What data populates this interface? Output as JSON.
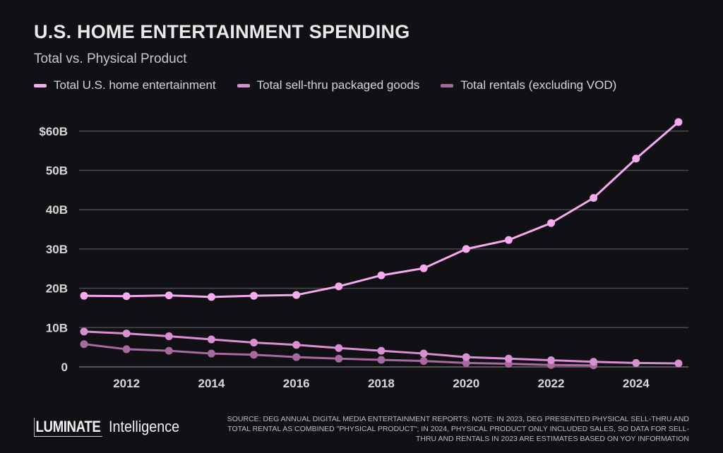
{
  "title": "U.S. HOME ENTERTAINMENT SPENDING",
  "subtitle": "Total vs. Physical Product",
  "logo": {
    "main": "LUMINATE",
    "sub": "Intelligence"
  },
  "source": "SOURCE: DEG ANNUAL DIGITAL MEDIA ENTERTAINMENT REPORTS; NOTE: IN 2023, DEG PRESENTED PHYSICAL SELL-THRU AND TOTAL RENTAL AS COMBINED \"PHYSICAL PRODUCT\"; IN 2024, PHYSICAL PRODUCT ONLY INCLUDED SALES, SO DATA FOR SELL-THRU AND RENTALS IN 2023 ARE ESTIMATES BASED ON YOY INFORMATION",
  "chart_data": {
    "type": "line",
    "title": "U.S. HOME ENTERTAINMENT SPENDING",
    "subtitle": "Total vs. Physical Product",
    "x": [
      2011,
      2012,
      2013,
      2014,
      2015,
      2016,
      2017,
      2018,
      2019,
      2020,
      2021,
      2022,
      2023,
      2024,
      2025
    ],
    "xticks": [
      "2012",
      "2014",
      "2016",
      "2018",
      "2020",
      "2022",
      "2024"
    ],
    "yticks": [
      "0",
      "10B",
      "20B",
      "30B",
      "40B",
      "50B",
      "$60B"
    ],
    "ylim": [
      0,
      60
    ],
    "yunit": "billions USD",
    "grid": true,
    "legend_placement": "top",
    "series": [
      {
        "name": "Total U.S. home entertainment",
        "color": "#f7aaf0",
        "values": [
          18.1,
          18.0,
          18.2,
          17.8,
          18.1,
          18.3,
          20.5,
          23.3,
          25.1,
          30.0,
          32.3,
          36.6,
          43.0,
          53.0,
          62.3
        ]
      },
      {
        "name": "Total sell-thru packaged goods",
        "color": "#d98fd1",
        "values": [
          9.0,
          8.5,
          7.8,
          7.0,
          6.2,
          5.6,
          4.8,
          4.1,
          3.4,
          2.5,
          2.1,
          1.7,
          1.3,
          1.0,
          0.9
        ]
      },
      {
        "name": "Total rentals (excluding VOD)",
        "color": "#a86a9e",
        "values": [
          5.8,
          4.5,
          4.1,
          3.4,
          3.1,
          2.5,
          2.1,
          1.8,
          1.5,
          1.0,
          0.8,
          0.5,
          0.4,
          null,
          null
        ]
      }
    ]
  }
}
